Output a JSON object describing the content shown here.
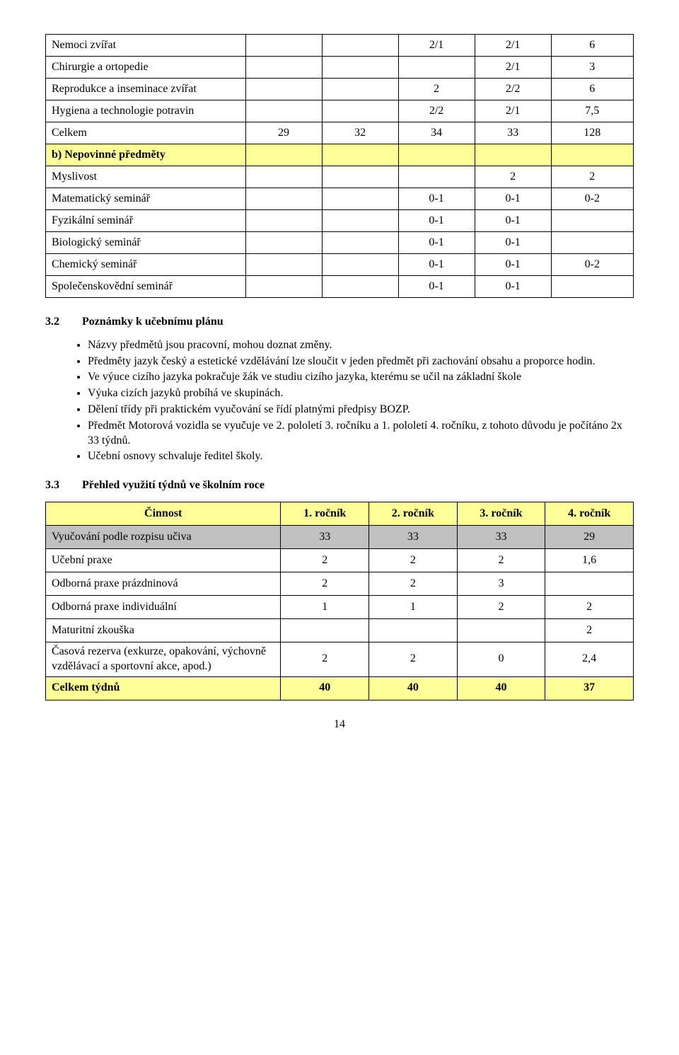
{
  "table1": {
    "col_widths": [
      "34%",
      "13%",
      "13%",
      "13%",
      "13%",
      "14%"
    ],
    "rows": [
      {
        "label": "Nemoci zvířat",
        "c": [
          "",
          "",
          "2/1",
          "2/1",
          "6"
        ],
        "yellow": false
      },
      {
        "label": "Chirurgie a ortopedie",
        "c": [
          "",
          "",
          "",
          "2/1",
          "3"
        ],
        "yellow": false
      },
      {
        "label": "Reprodukce a inseminace zvířat",
        "c": [
          "",
          "",
          "2",
          "2/2",
          "6"
        ],
        "yellow": false
      },
      {
        "label": "Hygiena a technologie potravin",
        "c": [
          "",
          "",
          "2/2",
          "2/1",
          "7,5"
        ],
        "yellow": false
      },
      {
        "label": "Celkem",
        "c": [
          "29",
          "32",
          "34",
          "33",
          "128"
        ],
        "yellow": false
      },
      {
        "label": "b)  Nepovinné předměty",
        "c": [
          "",
          "",
          "",
          "",
          ""
        ],
        "yellow": true,
        "bold": true
      },
      {
        "label": "Myslivost",
        "c": [
          "",
          "",
          "",
          "2",
          "2"
        ],
        "yellow": false
      },
      {
        "label": "Matematický seminář",
        "c": [
          "",
          "",
          "0-1",
          "0-1",
          "0-2"
        ],
        "yellow": false
      },
      {
        "label": "Fyzikální seminář",
        "c": [
          "",
          "",
          "0-1",
          "0-1",
          ""
        ],
        "yellow": false
      },
      {
        "label": "Biologický seminář",
        "c": [
          "",
          "",
          "0-1",
          "0-1",
          ""
        ],
        "yellow": false
      },
      {
        "label": "Chemický seminář",
        "c": [
          "",
          "",
          "0-1",
          "0-1",
          "0-2"
        ],
        "yellow": false
      },
      {
        "label": "Společenskovědní seminář",
        "c": [
          "",
          "",
          "0-1",
          "0-1",
          ""
        ],
        "yellow": false
      }
    ]
  },
  "section32": {
    "num": "3.2",
    "title": "Poznámky k učebnímu plánu"
  },
  "bullets": [
    "Názvy předmětů jsou pracovní, mohou doznat změny.",
    "Předměty jazyk český a estetické vzdělávání lze sloučit v jeden předmět při zachování obsahu a proporce hodin.",
    "Ve výuce cizího jazyka pokračuje žák ve studiu cizího jazyka, kterému se učil na základní škole",
    "Výuka cizích jazyků probíhá ve skupinách.",
    "Dělení třídy při praktickém vyučování se řídí platnými předpisy BOZP.",
    "Předmět Motorová vozidla se vyučuje ve 2. pololetí 3. ročníku a 1. pololetí 4. ročníku, z tohoto důvodu je počítáno 2x 33 týdnů.",
    "Učební osnovy schvaluje ředitel školy."
  ],
  "section33": {
    "num": "3.3",
    "title": "Přehled využití týdnů ve školním roce"
  },
  "table2": {
    "col_widths": [
      "40%",
      "15%",
      "15%",
      "15%",
      "15%"
    ],
    "header": [
      "Činnost",
      "1. ročník",
      "2. ročník",
      "3. ročník",
      "4. ročník"
    ],
    "rows": [
      {
        "label": "Vyučování podle rozpisu učiva",
        "c": [
          "33",
          "33",
          "33",
          "29"
        ],
        "style": "gray"
      },
      {
        "label": "Učební praxe",
        "c": [
          "2",
          "2",
          "2",
          "1,6"
        ],
        "style": ""
      },
      {
        "label": "Odborná praxe prázdninová",
        "c": [
          "2",
          "2",
          "3",
          ""
        ],
        "style": ""
      },
      {
        "label": "Odborná praxe individuální",
        "c": [
          "1",
          "1",
          "2",
          "2"
        ],
        "style": ""
      },
      {
        "label": "Maturitní zkouška",
        "c": [
          "",
          "",
          "",
          "2"
        ],
        "style": ""
      },
      {
        "label": "Časová rezerva (exkurze, opakování, výchovně vzdělávací a sportovní akce, apod.)",
        "c": [
          "2",
          "2",
          "0",
          "2,4"
        ],
        "style": ""
      },
      {
        "label": "Celkem týdnů",
        "c": [
          "40",
          "40",
          "40",
          "37"
        ],
        "style": "yellow",
        "bold": true
      }
    ]
  },
  "page_number": "14"
}
